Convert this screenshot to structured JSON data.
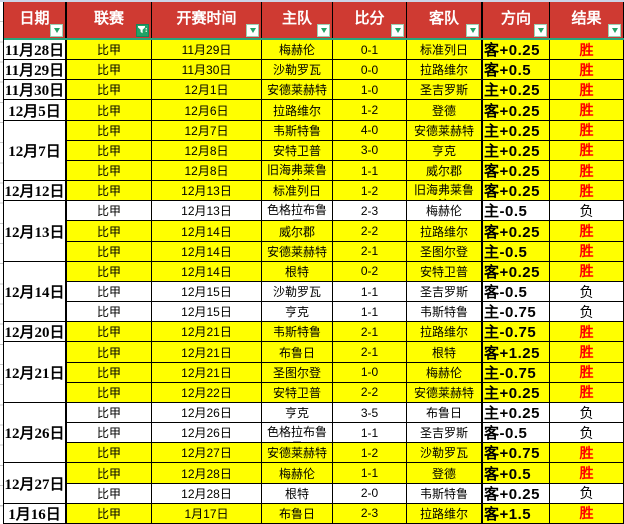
{
  "header": {
    "columns": [
      {
        "key": "date",
        "label": "日期",
        "filter": "arrow"
      },
      {
        "key": "league",
        "label": "联赛",
        "filter": "funnel"
      },
      {
        "key": "kickoff",
        "label": "开赛时间",
        "filter": "arrow"
      },
      {
        "key": "home",
        "label": "主队",
        "filter": "arrow"
      },
      {
        "key": "score",
        "label": "比分",
        "filter": "arrow"
      },
      {
        "key": "away",
        "label": "客队",
        "filter": "arrow"
      },
      {
        "key": "direction",
        "label": "方向",
        "filter": "arrow"
      },
      {
        "key": "result",
        "label": "结果",
        "filter": "arrow"
      }
    ]
  },
  "date_groups": [
    {
      "date": "11月28日",
      "start": 1,
      "span": 1
    },
    {
      "date": "11月29日",
      "start": 2,
      "span": 1
    },
    {
      "date": "11月30日",
      "start": 3,
      "span": 1
    },
    {
      "date": "12月5日",
      "start": 4,
      "span": 1
    },
    {
      "date": "12月7日",
      "start": 5,
      "span": 3
    },
    {
      "date": "12月12日",
      "start": 8,
      "span": 1
    },
    {
      "date": "12月13日",
      "start": 9,
      "span": 3
    },
    {
      "date": "12月14日",
      "start": 12,
      "span": 3
    },
    {
      "date": "12月20日",
      "start": 15,
      "span": 1
    },
    {
      "date": "12月21日",
      "start": 16,
      "span": 3
    },
    {
      "date": "12月26日",
      "start": 19,
      "span": 3
    },
    {
      "date": "12月27日",
      "start": 22,
      "span": 2
    },
    {
      "date": "1月16日",
      "start": 24,
      "span": 1
    }
  ],
  "rows": [
    {
      "league": "比甲",
      "kickoff": "11月29日",
      "home": "梅赫伦",
      "score": "0-1",
      "away": "标准列日",
      "direction": "客+0.25",
      "result": "胜",
      "win": true
    },
    {
      "league": "比甲",
      "kickoff": "11月30日",
      "home": "沙勒罗瓦",
      "score": "0-0",
      "away": "拉路维尔",
      "direction": "客+0.5",
      "result": "胜",
      "win": true
    },
    {
      "league": "比甲",
      "kickoff": "12月1日",
      "home": "安德莱赫特",
      "score": "1-0",
      "away": "圣吉罗斯",
      "direction": "主+0.25",
      "result": "胜",
      "win": true
    },
    {
      "league": "比甲",
      "kickoff": "12月6日",
      "home": "拉路维尔",
      "score": "1-2",
      "away": "登德",
      "direction": "客+0.25",
      "result": "胜",
      "win": true
    },
    {
      "league": "比甲",
      "kickoff": "12月7日",
      "home": "韦斯特鲁",
      "score": "4-0",
      "away": "安德莱赫特",
      "direction": "主+0.25",
      "result": "胜",
      "win": true
    },
    {
      "league": "比甲",
      "kickoff": "12月8日",
      "home": "安特卫普",
      "score": "3-0",
      "away": "亨克",
      "direction": "主+0.25",
      "result": "胜",
      "win": true
    },
    {
      "league": "比甲",
      "kickoff": "12月8日",
      "home": "旧海弗莱鲁\n汶",
      "score": "1-1",
      "away": "威尔郡",
      "direction": "客+0.25",
      "result": "胜",
      "win": true
    },
    {
      "league": "比甲",
      "kickoff": "12月13日",
      "home": "标准列日",
      "score": "1-2",
      "away": "旧海弗莱鲁\n汶",
      "direction": "客+0.25",
      "result": "胜",
      "win": true
    },
    {
      "league": "比甲",
      "kickoff": "12月13日",
      "home": "色格拉布鲁\n日",
      "score": "2-3",
      "away": "梅赫伦",
      "direction": "主-0.5",
      "result": "负",
      "win": false
    },
    {
      "league": "比甲",
      "kickoff": "12月14日",
      "home": "威尔郡",
      "score": "2-2",
      "away": "拉路维尔",
      "direction": "客+0.25",
      "result": "胜",
      "win": true
    },
    {
      "league": "比甲",
      "kickoff": "12月14日",
      "home": "安德莱赫特",
      "score": "2-1",
      "away": "圣图尔登",
      "direction": "主-0.5",
      "result": "胜",
      "win": true
    },
    {
      "league": "比甲",
      "kickoff": "12月14日",
      "home": "根特",
      "score": "0-2",
      "away": "安特卫普",
      "direction": "客+0.25",
      "result": "胜",
      "win": true
    },
    {
      "league": "比甲",
      "kickoff": "12月15日",
      "home": "沙勒罗瓦",
      "score": "1-1",
      "away": "圣吉罗斯",
      "direction": "客-0.5",
      "result": "负",
      "win": false
    },
    {
      "league": "比甲",
      "kickoff": "12月15日",
      "home": "亨克",
      "score": "1-1",
      "away": "韦斯特鲁",
      "direction": "主-0.75",
      "result": "负",
      "win": false
    },
    {
      "league": "比甲",
      "kickoff": "12月21日",
      "home": "韦斯特鲁",
      "score": "2-1",
      "away": "拉路维尔",
      "direction": "主-0.75",
      "result": "胜",
      "win": true
    },
    {
      "league": "比甲",
      "kickoff": "12月21日",
      "home": "布鲁日",
      "score": "2-1",
      "away": "根特",
      "direction": "客+1.25",
      "result": "胜",
      "win": true
    },
    {
      "league": "比甲",
      "kickoff": "12月21日",
      "home": "圣图尔登",
      "score": "1-0",
      "away": "梅赫伦",
      "direction": "主-0.75",
      "result": "胜",
      "win": true
    },
    {
      "league": "比甲",
      "kickoff": "12月22日",
      "home": "安特卫普",
      "score": "2-2",
      "away": "安德莱赫特",
      "direction": "主+0.25",
      "result": "胜",
      "win": true
    },
    {
      "league": "比甲",
      "kickoff": "12月26日",
      "home": "亨克",
      "score": "3-5",
      "away": "布鲁日",
      "direction": "主+0.25",
      "result": "负",
      "win": false
    },
    {
      "league": "比甲",
      "kickoff": "12月26日",
      "home": "色格拉布鲁\n日",
      "score": "1-1",
      "away": "圣吉罗斯",
      "direction": "客-0.5",
      "result": "负",
      "win": false
    },
    {
      "league": "比甲",
      "kickoff": "12月27日",
      "home": "安德莱赫特",
      "score": "1-2",
      "away": "沙勒罗瓦",
      "direction": "客+0.75",
      "result": "胜",
      "win": true
    },
    {
      "league": "比甲",
      "kickoff": "12月28日",
      "home": "梅赫伦",
      "score": "1-1",
      "away": "登德",
      "direction": "客+0.5",
      "result": "胜",
      "win": true
    },
    {
      "league": "比甲",
      "kickoff": "12月28日",
      "home": "根特",
      "score": "2-0",
      "away": "韦斯特鲁",
      "direction": "客+0.25",
      "result": "负",
      "win": false
    },
    {
      "league": "比甲",
      "kickoff": "1月17日",
      "home": "布鲁日",
      "score": "2-3",
      "away": "拉路维尔",
      "direction": "客+1.5",
      "result": "胜",
      "win": true
    }
  ],
  "colors": {
    "header_bg": "#cf3a32",
    "header_text": "#ffffff",
    "win_row_bg": "#ffff00",
    "win_text": "#ff0000",
    "loss_text": "#000000",
    "filter_green": "#21a366",
    "header_underline": "#26a57c",
    "grid_line": "#000000"
  }
}
